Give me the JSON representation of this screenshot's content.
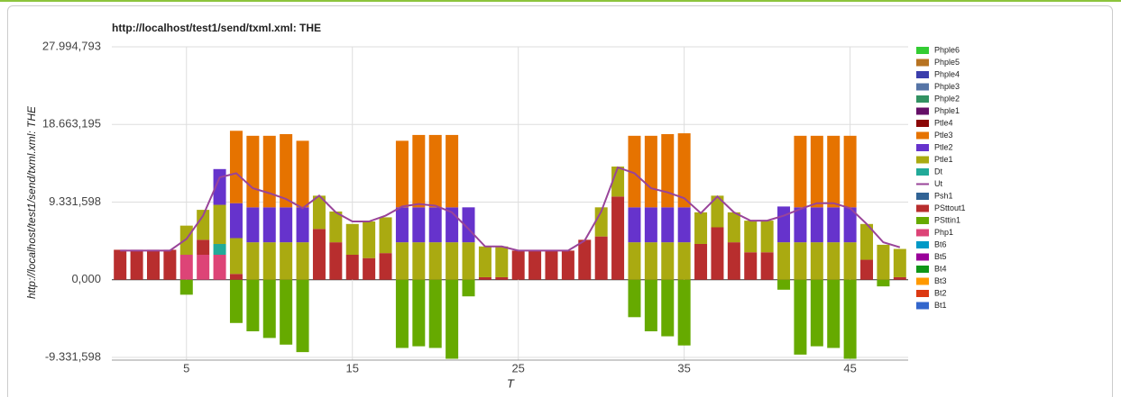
{
  "chart_data": {
    "type": "bar",
    "stacked": true,
    "title": "http://localhost/test1/send/txml.xml: THE",
    "x_label": "T",
    "y_label": "http://localhost/test1/send/txml.xml: THE",
    "x": [
      1,
      2,
      3,
      4,
      5,
      6,
      7,
      8,
      9,
      10,
      11,
      12,
      13,
      14,
      15,
      16,
      17,
      18,
      19,
      20,
      21,
      22,
      23,
      24,
      25,
      26,
      27,
      28,
      29,
      30,
      31,
      32,
      33,
      34,
      35,
      36,
      37,
      38,
      39,
      40,
      41,
      42,
      43,
      44,
      45,
      46,
      47,
      48
    ],
    "xlim": [
      0.5,
      48.5
    ],
    "xticks": [
      5,
      15,
      25,
      35,
      45
    ],
    "ylim": [
      -9660000,
      27994793
    ],
    "yticks": [
      {
        "value": -9331598,
        "label": "-9.331,598"
      },
      {
        "value": 0,
        "label": "0,000"
      },
      {
        "value": 9331598,
        "label": "9.331,598"
      },
      {
        "value": 18663195,
        "label": "18.663,195"
      },
      {
        "value": 27994793,
        "label": "27.994,793"
      }
    ],
    "grid": true,
    "legend": "right",
    "series": [
      {
        "name": "Phple6",
        "color": "#33cc33",
        "values": [
          0,
          0,
          0,
          0,
          0,
          0,
          0,
          0,
          0,
          0,
          0,
          0,
          0,
          0,
          0,
          0,
          0,
          0,
          0,
          0,
          0,
          0,
          0,
          0,
          0,
          0,
          0,
          0,
          0,
          0,
          0,
          0,
          0,
          0,
          0,
          0,
          0,
          0,
          0,
          0,
          0,
          0,
          0,
          0,
          0,
          0,
          0,
          0
        ]
      },
      {
        "name": "Phple5",
        "color": "#b77322",
        "values": [
          0,
          0,
          0,
          0,
          0,
          0,
          0,
          0,
          0,
          0,
          0,
          0,
          0,
          0,
          0,
          0,
          0,
          0,
          0,
          0,
          0,
          0,
          0,
          0,
          0,
          0,
          0,
          0,
          0,
          0,
          0,
          0,
          0,
          0,
          0,
          0,
          0,
          0,
          0,
          0,
          0,
          0,
          0,
          0,
          0,
          0,
          0,
          0
        ]
      },
      {
        "name": "Phple4",
        "color": "#3b3eac",
        "values": [
          0,
          0,
          0,
          0,
          0,
          0,
          0,
          0,
          0,
          0,
          0,
          0,
          0,
          0,
          0,
          0,
          0,
          0,
          0,
          0,
          0,
          0,
          0,
          0,
          0,
          0,
          0,
          0,
          0,
          0,
          0,
          0,
          0,
          0,
          0,
          0,
          0,
          0,
          0,
          0,
          0,
          0,
          0,
          0,
          0,
          0,
          0,
          0
        ]
      },
      {
        "name": "Phple3",
        "color": "#5574a6",
        "values": [
          0,
          0,
          0,
          0,
          0,
          0,
          0,
          0,
          0,
          0,
          0,
          0,
          0,
          0,
          0,
          0,
          0,
          0,
          0,
          0,
          0,
          0,
          0,
          0,
          0,
          0,
          0,
          0,
          0,
          0,
          0,
          0,
          0,
          0,
          0,
          0,
          0,
          0,
          0,
          0,
          0,
          0,
          0,
          0,
          0,
          0,
          0,
          0
        ]
      },
      {
        "name": "Phple2",
        "color": "#329262",
        "values": [
          0,
          0,
          0,
          0,
          0,
          0,
          0,
          0,
          0,
          0,
          0,
          0,
          0,
          0,
          0,
          0,
          0,
          0,
          0,
          0,
          0,
          0,
          0,
          0,
          0,
          0,
          0,
          0,
          0,
          0,
          0,
          0,
          0,
          0,
          0,
          0,
          0,
          0,
          0,
          0,
          0,
          0,
          0,
          0,
          0,
          0,
          0,
          0
        ]
      },
      {
        "name": "Phple1",
        "color": "#651067",
        "values": [
          0,
          0,
          0,
          0,
          0,
          0,
          0,
          0,
          0,
          0,
          0,
          0,
          0,
          0,
          0,
          0,
          0,
          0,
          0,
          0,
          0,
          0,
          0,
          0,
          0,
          0,
          0,
          0,
          0,
          0,
          0,
          0,
          0,
          0,
          0,
          0,
          0,
          0,
          0,
          0,
          0,
          0,
          0,
          0,
          0,
          0,
          0,
          0
        ]
      },
      {
        "name": "Ptle4",
        "color": "#8b0707",
        "values": [
          0,
          0,
          0,
          0,
          0,
          0,
          0,
          0,
          0,
          0,
          0,
          0,
          0,
          0,
          0,
          0,
          0,
          0,
          0,
          0,
          0,
          0,
          0,
          0,
          0,
          0,
          0,
          0,
          0,
          0,
          0,
          0,
          0,
          0,
          0,
          0,
          0,
          0,
          0,
          0,
          0,
          0,
          0,
          0,
          0,
          0,
          0,
          0
        ]
      },
      {
        "name": "Ptle3",
        "color": "#e67300",
        "values": [
          0,
          0,
          0,
          0,
          0,
          0,
          0,
          8700000,
          8600000,
          8600000,
          8800000,
          8000000,
          0,
          0,
          0,
          0,
          0,
          8000000,
          8700000,
          8700000,
          8700000,
          0,
          0,
          0,
          0,
          0,
          0,
          0,
          0,
          0,
          0,
          8600000,
          8600000,
          8800000,
          8900000,
          0,
          0,
          0,
          0,
          0,
          0,
          8600000,
          8600000,
          8600000,
          8600000,
          0,
          0,
          0
        ]
      },
      {
        "name": "Ptle2",
        "color": "#6633cc",
        "values": [
          0,
          0,
          0,
          0,
          0,
          0,
          4300000,
          4200000,
          4200000,
          4200000,
          4200000,
          4200000,
          0,
          0,
          0,
          0,
          0,
          4200000,
          4200000,
          4200000,
          4200000,
          4200000,
          0,
          0,
          0,
          0,
          0,
          0,
          0,
          0,
          0,
          4200000,
          4200000,
          4200000,
          4200000,
          0,
          0,
          0,
          0,
          0,
          4300000,
          4200000,
          4200000,
          4200000,
          4200000,
          0,
          0,
          0
        ]
      },
      {
        "name": "Ptle1",
        "color": "#aaaa11",
        "values": [
          0,
          0,
          0,
          0,
          3500000,
          3600000,
          4700000,
          4300000,
          4500000,
          4500000,
          4500000,
          4500000,
          4000000,
          3700000,
          3700000,
          4400000,
          4300000,
          4500000,
          4500000,
          4500000,
          4500000,
          4500000,
          3700000,
          3700000,
          0,
          0,
          0,
          0,
          0,
          3500000,
          3600000,
          4500000,
          4500000,
          4500000,
          4500000,
          3800000,
          3800000,
          3600000,
          3800000,
          3800000,
          4500000,
          4500000,
          4500000,
          4500000,
          4500000,
          4300000,
          4200000,
          3400000
        ]
      },
      {
        "name": "Dt",
        "color": "#22aa99",
        "values": [
          0,
          0,
          0,
          0,
          0,
          0,
          1300000,
          0,
          0,
          0,
          0,
          0,
          0,
          0,
          0,
          0,
          0,
          0,
          0,
          0,
          0,
          0,
          0,
          0,
          0,
          0,
          0,
          0,
          0,
          0,
          0,
          0,
          0,
          0,
          0,
          0,
          0,
          0,
          0,
          0,
          0,
          0,
          0,
          0,
          0,
          0,
          0,
          0
        ]
      },
      {
        "name": "Ut",
        "color": "#994499",
        "type": "line",
        "values": [
          3500000,
          3500000,
          3500000,
          3500000,
          4900000,
          7700000,
          12300000,
          12800000,
          11000000,
          10400000,
          9700000,
          8600000,
          10100000,
          8100000,
          7000000,
          7000000,
          7700000,
          8800000,
          9100000,
          8900000,
          8100000,
          6100000,
          4000000,
          4000000,
          3500000,
          3500000,
          3500000,
          3500000,
          4700000,
          8200000,
          13500000,
          12800000,
          11000000,
          10500000,
          9800000,
          8000000,
          10000000,
          8100000,
          7100000,
          7100000,
          7700000,
          8500000,
          9200000,
          9200000,
          8600000,
          6700000,
          4500000,
          3900000
        ]
      },
      {
        "name": "Psh1",
        "color": "#316395",
        "values": [
          0,
          0,
          0,
          0,
          0,
          0,
          0,
          0,
          0,
          0,
          0,
          0,
          0,
          0,
          0,
          0,
          0,
          0,
          0,
          0,
          0,
          0,
          0,
          0,
          0,
          0,
          0,
          0,
          0,
          0,
          0,
          0,
          0,
          0,
          0,
          0,
          0,
          0,
          0,
          0,
          0,
          0,
          0,
          0,
          0,
          0,
          0,
          0
        ]
      },
      {
        "name": "PSttout1",
        "color": "#b82e2e",
        "values": [
          3600000,
          3600000,
          3600000,
          3600000,
          0,
          1800000,
          0,
          700000,
          0,
          0,
          0,
          0,
          6100000,
          4500000,
          3000000,
          2600000,
          3200000,
          0,
          0,
          0,
          0,
          0,
          300000,
          300000,
          3500000,
          3500000,
          3500000,
          3500000,
          4800000,
          5200000,
          10000000,
          0,
          0,
          0,
          0,
          4300000,
          6300000,
          4500000,
          3300000,
          3300000,
          0,
          0,
          0,
          0,
          0,
          2400000,
          0,
          300000
        ]
      },
      {
        "name": "PSttin1",
        "color": "#66aa00",
        "values": [
          0,
          0,
          0,
          0,
          -1800000,
          0,
          0,
          -5200000,
          -6200000,
          -7000000,
          -7800000,
          -8700000,
          0,
          0,
          0,
          0,
          0,
          -8200000,
          -8000000,
          -8200000,
          -9500000,
          -2000000,
          0,
          0,
          0,
          0,
          0,
          0,
          0,
          0,
          0,
          -4500000,
          -6200000,
          -6800000,
          -7900000,
          0,
          0,
          0,
          0,
          0,
          -1200000,
          -9000000,
          -8000000,
          -8200000,
          -9500000,
          0,
          -800000,
          0
        ]
      },
      {
        "name": "Php1",
        "color": "#dd4477",
        "values": [
          0,
          0,
          0,
          0,
          3000000,
          3000000,
          3000000,
          0,
          0,
          0,
          0,
          0,
          0,
          0,
          0,
          0,
          0,
          0,
          0,
          0,
          0,
          0,
          0,
          0,
          0,
          0,
          0,
          0,
          0,
          0,
          0,
          0,
          0,
          0,
          0,
          0,
          0,
          0,
          0,
          0,
          0,
          0,
          0,
          0,
          0,
          0,
          0,
          0
        ]
      },
      {
        "name": "Bt6",
        "color": "#0099c6",
        "values": [
          0,
          0,
          0,
          0,
          0,
          0,
          0,
          0,
          0,
          0,
          0,
          0,
          0,
          0,
          0,
          0,
          0,
          0,
          0,
          0,
          0,
          0,
          0,
          0,
          0,
          0,
          0,
          0,
          0,
          0,
          0,
          0,
          0,
          0,
          0,
          0,
          0,
          0,
          0,
          0,
          0,
          0,
          0,
          0,
          0,
          0,
          0,
          0
        ]
      },
      {
        "name": "Bt5",
        "color": "#990099",
        "values": [
          0,
          0,
          0,
          0,
          0,
          0,
          0,
          0,
          0,
          0,
          0,
          0,
          0,
          0,
          0,
          0,
          0,
          0,
          0,
          0,
          0,
          0,
          0,
          0,
          0,
          0,
          0,
          0,
          0,
          0,
          0,
          0,
          0,
          0,
          0,
          0,
          0,
          0,
          0,
          0,
          0,
          0,
          0,
          0,
          0,
          0,
          0,
          0
        ]
      },
      {
        "name": "Bt4",
        "color": "#109618",
        "values": [
          0,
          0,
          0,
          0,
          0,
          0,
          0,
          0,
          0,
          0,
          0,
          0,
          0,
          0,
          0,
          0,
          0,
          0,
          0,
          0,
          0,
          0,
          0,
          0,
          0,
          0,
          0,
          0,
          0,
          0,
          0,
          0,
          0,
          0,
          0,
          0,
          0,
          0,
          0,
          0,
          0,
          0,
          0,
          0,
          0,
          0,
          0,
          0
        ]
      },
      {
        "name": "Bt3",
        "color": "#ff9900",
        "values": [
          0,
          0,
          0,
          0,
          0,
          0,
          0,
          0,
          0,
          0,
          0,
          0,
          0,
          0,
          0,
          0,
          0,
          0,
          0,
          0,
          0,
          0,
          0,
          0,
          0,
          0,
          0,
          0,
          0,
          0,
          0,
          0,
          0,
          0,
          0,
          0,
          0,
          0,
          0,
          0,
          0,
          0,
          0,
          0,
          0,
          0,
          0,
          0
        ]
      },
      {
        "name": "Bt2",
        "color": "#dc3912",
        "values": [
          0,
          0,
          0,
          0,
          0,
          0,
          0,
          0,
          0,
          0,
          0,
          0,
          0,
          0,
          0,
          0,
          0,
          0,
          0,
          0,
          0,
          0,
          0,
          0,
          0,
          0,
          0,
          0,
          0,
          0,
          0,
          0,
          0,
          0,
          0,
          0,
          0,
          0,
          0,
          0,
          0,
          0,
          0,
          0,
          0,
          0,
          0,
          0
        ]
      },
      {
        "name": "Bt1",
        "color": "#3366cc",
        "values": [
          0,
          0,
          0,
          0,
          0,
          0,
          0,
          0,
          0,
          0,
          0,
          0,
          0,
          0,
          0,
          0,
          0,
          0,
          0,
          0,
          0,
          0,
          0,
          0,
          0,
          0,
          0,
          0,
          0,
          0,
          0,
          0,
          0,
          0,
          0,
          0,
          0,
          0,
          0,
          0,
          0,
          0,
          0,
          0,
          0,
          0,
          0,
          0
        ]
      }
    ]
  }
}
